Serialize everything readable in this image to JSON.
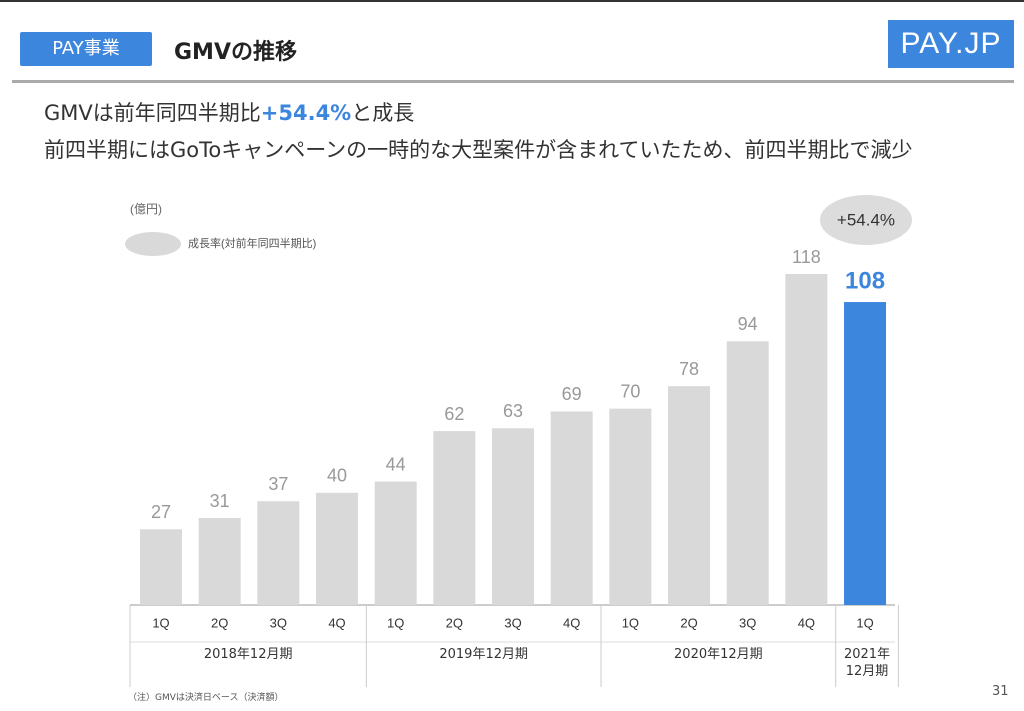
{
  "header": {
    "tag": "PAY事業",
    "title": "GMVの推移",
    "logo": "PAY.JP"
  },
  "headline": {
    "line1": [
      "GMVは前年同四半期比",
      "+54.4%",
      "と成長"
    ],
    "line2": "前四半期にはGoToキャンペーンの一時的な大型案件が含まれていたため、前四半期比で減少"
  },
  "chart_data": {
    "type": "bar",
    "unit": "(億円)",
    "legend": "成長率(対前年同四半期比)",
    "annotation": "+54.4%",
    "groups": [
      {
        "label": "2018年12月期",
        "color": "#d9d9d9",
        "categories": [
          "1Q",
          "2Q",
          "3Q",
          "4Q"
        ],
        "values": [
          27,
          31,
          37,
          40
        ]
      },
      {
        "label": "2019年12月期",
        "color": "#d9d9d9",
        "categories": [
          "1Q",
          "2Q",
          "3Q",
          "4Q"
        ],
        "values": [
          44,
          62,
          63,
          69
        ]
      },
      {
        "label": "2020年12月期",
        "color": "#d9d9d9",
        "categories": [
          "1Q",
          "2Q",
          "3Q",
          "4Q"
        ],
        "values": [
          70,
          78,
          94,
          118
        ]
      },
      {
        "label": "2021年12月期",
        "color": "#3d86dd",
        "categories": [
          "1Q"
        ],
        "values": [
          108
        ]
      }
    ]
  },
  "footnote": "（注）GMVは決済日ベース（決済額）",
  "page_number": "31"
}
